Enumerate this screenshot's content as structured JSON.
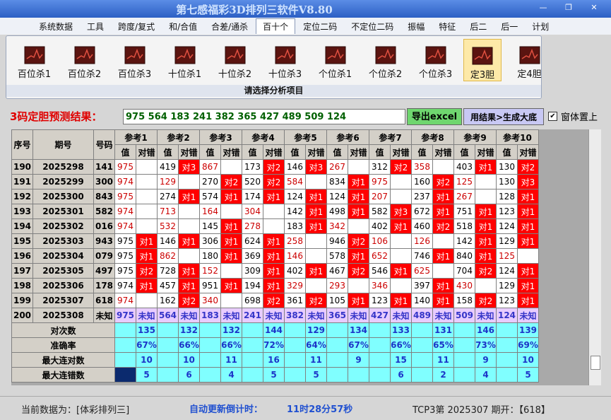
{
  "window": {
    "title": "第七感福彩3D排列三软件V8.80"
  },
  "menu": [
    "系统数据",
    "工具",
    "跨度/复式",
    "和/合值",
    "合差/通杀",
    "百十个",
    "定位二码",
    "不定位二码",
    "振幅",
    "特征",
    "后二",
    "后一",
    "计划"
  ],
  "toolbar": {
    "items": [
      "百位杀1",
      "百位杀2",
      "百位杀3",
      "十位杀1",
      "十位杀2",
      "十位杀3",
      "个位杀1",
      "个位杀2",
      "个位杀3",
      "定3胆",
      "定4胆"
    ],
    "caption": "请选择分析项目"
  },
  "result": {
    "label": "3码定胆预测结果：",
    "value": "975 564 183 241 382 365 427 489 509 124",
    "export_button": "导出excel",
    "generate_button": "用结果>生成大底",
    "checkbox": "窗体置上"
  },
  "table": {
    "headers": [
      "序号",
      "期号",
      "号码"
    ],
    "refs": [
      "参考1",
      "参考2",
      "参考3",
      "参考4",
      "参考5",
      "参考6",
      "参考7",
      "参考8",
      "参考9",
      "参考10"
    ],
    "sub_headers": [
      "值",
      "对错"
    ],
    "rows": [
      {
        "no": "190",
        "issue": "2025298",
        "number": "141",
        "refs": [
          [
            "975",
            null
          ],
          [
            "419",
            "对3"
          ],
          [
            "867",
            null
          ],
          [
            "173",
            "对2"
          ],
          [
            "146",
            "对3"
          ],
          [
            "267",
            null
          ],
          [
            "312",
            "对2"
          ],
          [
            "358",
            null
          ],
          [
            "403",
            "对1"
          ],
          [
            "130",
            "对2"
          ]
        ]
      },
      {
        "no": "191",
        "issue": "2025299",
        "number": "300",
        "refs": [
          [
            "974",
            null
          ],
          [
            "129",
            null
          ],
          [
            "270",
            "对2"
          ],
          [
            "520",
            "对2"
          ],
          [
            "584",
            null
          ],
          [
            "834",
            "对1"
          ],
          [
            "975",
            null
          ],
          [
            "160",
            "对2"
          ],
          [
            "125",
            null
          ],
          [
            "130",
            "对3"
          ]
        ]
      },
      {
        "no": "192",
        "issue": "2025300",
        "number": "843",
        "refs": [
          [
            "975",
            null
          ],
          [
            "274",
            "对1"
          ],
          [
            "574",
            "对1"
          ],
          [
            "174",
            "对1"
          ],
          [
            "124",
            "对1"
          ],
          [
            "124",
            "对1"
          ],
          [
            "207",
            null
          ],
          [
            "237",
            "对1"
          ],
          [
            "267",
            null
          ],
          [
            "128",
            "对1"
          ]
        ]
      },
      {
        "no": "193",
        "issue": "2025301",
        "number": "582",
        "refs": [
          [
            "974",
            null
          ],
          [
            "713",
            null
          ],
          [
            "164",
            null
          ],
          [
            "304",
            null
          ],
          [
            "142",
            "对1"
          ],
          [
            "498",
            "对1"
          ],
          [
            "582",
            "对3"
          ],
          [
            "672",
            "对1"
          ],
          [
            "751",
            "对1"
          ],
          [
            "123",
            "对1"
          ]
        ]
      },
      {
        "no": "194",
        "issue": "2025302",
        "number": "016",
        "refs": [
          [
            "974",
            null
          ],
          [
            "532",
            null
          ],
          [
            "145",
            "对1"
          ],
          [
            "278",
            null
          ],
          [
            "183",
            "对1"
          ],
          [
            "342",
            null
          ],
          [
            "402",
            "对1"
          ],
          [
            "460",
            "对2"
          ],
          [
            "518",
            "对1"
          ],
          [
            "124",
            "对1"
          ]
        ]
      },
      {
        "no": "195",
        "issue": "2025303",
        "number": "943",
        "refs": [
          [
            "975",
            "对1"
          ],
          [
            "146",
            "对1"
          ],
          [
            "306",
            "对1"
          ],
          [
            "624",
            "对1"
          ],
          [
            "258",
            null
          ],
          [
            "946",
            "对2"
          ],
          [
            "106",
            null
          ],
          [
            "126",
            null
          ],
          [
            "142",
            "对1"
          ],
          [
            "129",
            "对1"
          ]
        ]
      },
      {
        "no": "196",
        "issue": "2025304",
        "number": "079",
        "refs": [
          [
            "975",
            "对1"
          ],
          [
            "862",
            null
          ],
          [
            "180",
            "对1"
          ],
          [
            "369",
            "对1"
          ],
          [
            "146",
            null
          ],
          [
            "578",
            "对1"
          ],
          [
            "652",
            null
          ],
          [
            "746",
            "对1"
          ],
          [
            "840",
            "对1"
          ],
          [
            "125",
            null
          ]
        ]
      },
      {
        "no": "197",
        "issue": "2025305",
        "number": "497",
        "refs": [
          [
            "975",
            "对2"
          ],
          [
            "728",
            "对1"
          ],
          [
            "152",
            null
          ],
          [
            "309",
            "对1"
          ],
          [
            "402",
            "对1"
          ],
          [
            "467",
            "对2"
          ],
          [
            "546",
            "对1"
          ],
          [
            "625",
            null
          ],
          [
            "704",
            "对2"
          ],
          [
            "124",
            "对1"
          ]
        ]
      },
      {
        "no": "198",
        "issue": "2025306",
        "number": "178",
        "refs": [
          [
            "974",
            "对1"
          ],
          [
            "457",
            "对1"
          ],
          [
            "951",
            "对1"
          ],
          [
            "194",
            "对1"
          ],
          [
            "329",
            null
          ],
          [
            "293",
            null
          ],
          [
            "346",
            null
          ],
          [
            "397",
            "对1"
          ],
          [
            "430",
            null
          ],
          [
            "129",
            "对1"
          ]
        ]
      },
      {
        "no": "199",
        "issue": "2025307",
        "number": "618",
        "refs": [
          [
            "974",
            null
          ],
          [
            "162",
            "对2"
          ],
          [
            "340",
            null
          ],
          [
            "698",
            "对2"
          ],
          [
            "361",
            "对2"
          ],
          [
            "105",
            "对1"
          ],
          [
            "123",
            "对1"
          ],
          [
            "140",
            "对1"
          ],
          [
            "158",
            "对2"
          ],
          [
            "123",
            "对1"
          ]
        ]
      },
      {
        "no": "200",
        "issue": "2025308",
        "number": "未知",
        "refs": [
          [
            "975",
            "未知"
          ],
          [
            "564",
            "未知"
          ],
          [
            "183",
            "未知"
          ],
          [
            "241",
            "未知"
          ],
          [
            "382",
            "未知"
          ],
          [
            "365",
            "未知"
          ],
          [
            "427",
            "未知"
          ],
          [
            "489",
            "未知"
          ],
          [
            "509",
            "未知"
          ],
          [
            "124",
            "未知"
          ]
        ]
      }
    ],
    "summary": [
      {
        "label": "对次数",
        "values": [
          "135",
          "132",
          "132",
          "144",
          "129",
          "134",
          "133",
          "131",
          "146",
          "139"
        ]
      },
      {
        "label": "准确率",
        "values": [
          "67%",
          "66%",
          "66%",
          "72%",
          "64%",
          "67%",
          "66%",
          "65%",
          "73%",
          "69%"
        ]
      },
      {
        "label": "最大连对数",
        "values": [
          "10",
          "10",
          "11",
          "16",
          "11",
          "9",
          "15",
          "11",
          "9",
          "10"
        ]
      },
      {
        "label": "最大连错数",
        "values": [
          "5",
          "6",
          "4",
          "5",
          "5",
          null,
          "6",
          "2",
          "4",
          "5"
        ]
      }
    ]
  },
  "status": {
    "current": "当前数据为：[体彩排列三]",
    "countdown_label": "自动更新倒计时：",
    "countdown": "11时28分57秒",
    "draw": "TCP3第 2025307 期开：【618】"
  }
}
